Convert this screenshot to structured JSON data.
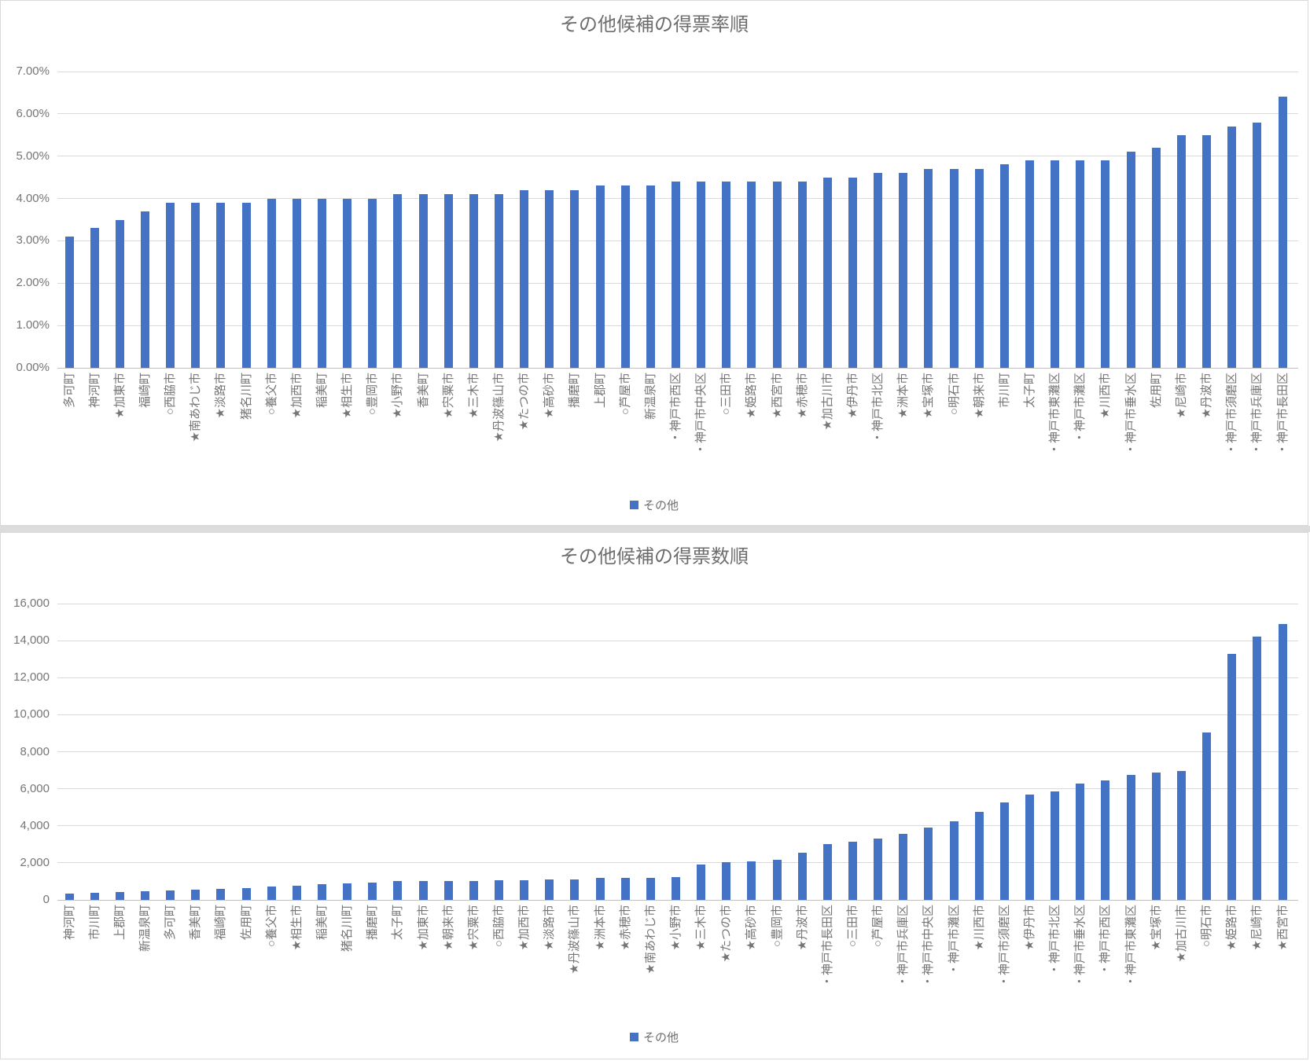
{
  "chart_data": [
    {
      "type": "bar",
      "title": "その他候補の得票率順",
      "series_name": "その他",
      "legend_position": "bottom",
      "grid": true,
      "color": "#4472C4",
      "unit": "%",
      "ylim": [
        0,
        7
      ],
      "ytick_labels": [
        "0.00%",
        "1.00%",
        "2.00%",
        "3.00%",
        "4.00%",
        "5.00%",
        "6.00%",
        "7.00%"
      ],
      "categories": [
        "多可町",
        "神河町",
        "★加東市",
        "福崎町",
        "○西脇市",
        "★南あわじ市",
        "★淡路市",
        "猪名川町",
        "○養父市",
        "★加西市",
        "稲美町",
        "★相生市",
        "○豊岡市",
        "★小野市",
        "香美町",
        "★宍粟市",
        "★三木市",
        "★丹波篠山市",
        "★たつの市",
        "★高砂市",
        "播磨町",
        "上郡町",
        "○芦屋市",
        "新温泉町",
        "・神戸市西区",
        "・神戸市中央区",
        "○三田市",
        "★姫路市",
        "★西宮市",
        "★赤穂市",
        "★加古川市",
        "★伊丹市",
        "・神戸市北区",
        "★洲本市",
        "★宝塚市",
        "○明石市",
        "★朝来市",
        "市川町",
        "太子町",
        "・神戸市東灘区",
        "・神戸市灘区",
        "★川西市",
        "・神戸市垂水区",
        "佐用町",
        "★尼崎市",
        "★丹波市",
        "・神戸市須磨区",
        "・神戸市兵庫区",
        "・神戸市長田区"
      ],
      "values": [
        3.1,
        3.3,
        3.5,
        3.7,
        3.9,
        3.9,
        3.9,
        3.9,
        4.0,
        4.0,
        4.0,
        4.0,
        4.0,
        4.1,
        4.1,
        4.1,
        4.1,
        4.1,
        4.2,
        4.2,
        4.2,
        4.3,
        4.3,
        4.3,
        4.4,
        4.4,
        4.4,
        4.4,
        4.4,
        4.4,
        4.5,
        4.5,
        4.6,
        4.6,
        4.7,
        4.7,
        4.7,
        4.8,
        4.9,
        4.9,
        4.9,
        4.9,
        5.1,
        5.2,
        5.5,
        5.5,
        5.7,
        5.8,
        6.4
      ]
    },
    {
      "type": "bar",
      "title": "その他候補の得票数順",
      "series_name": "その他",
      "legend_position": "bottom",
      "grid": true,
      "color": "#4472C4",
      "unit": "votes",
      "ylim": [
        0,
        16000
      ],
      "ytick_labels": [
        "0",
        "2,000",
        "4,000",
        "6,000",
        "8,000",
        "10,000",
        "12,000",
        "14,000",
        "16,000"
      ],
      "categories": [
        "神河町",
        "市川町",
        "上郡町",
        "新温泉町",
        "多可町",
        "香美町",
        "福崎町",
        "佐用町",
        "○養父市",
        "★相生市",
        "稲美町",
        "猪名川町",
        "播磨町",
        "太子町",
        "★加東市",
        "★朝来市",
        "★宍粟市",
        "○西脇市",
        "★加西市",
        "★淡路市",
        "★丹波篠山市",
        "★洲本市",
        "★赤穂市",
        "★南あわじ市",
        "★小野市",
        "★三木市",
        "★たつの市",
        "★高砂市",
        "○豊岡市",
        "★丹波市",
        "・神戸市長田区",
        "○三田市",
        "○芦屋市",
        "・神戸市兵庫区",
        "・神戸市中央区",
        "・神戸市灘区",
        "★川西市",
        "・神戸市須磨区",
        "★伊丹市",
        "・神戸市北区",
        "・神戸市垂水区",
        "・神戸市西区",
        "・神戸市東灘区",
        "★宝塚市",
        "★加古川市",
        "○明石市",
        "★姫路市",
        "★尼崎市",
        "★西宮市"
      ],
      "values": [
        350,
        400,
        420,
        480,
        520,
        540,
        600,
        640,
        720,
        780,
        830,
        880,
        950,
        1000,
        1000,
        1000,
        1020,
        1050,
        1080,
        1100,
        1120,
        1180,
        1190,
        1200,
        1250,
        1900,
        2050,
        2080,
        2150,
        2550,
        3000,
        3150,
        3300,
        3550,
        3900,
        4250,
        4750,
        5250,
        5700,
        5870,
        6300,
        6440,
        6760,
        6860,
        6940,
        9060,
        13300,
        14200,
        14890
      ]
    }
  ]
}
